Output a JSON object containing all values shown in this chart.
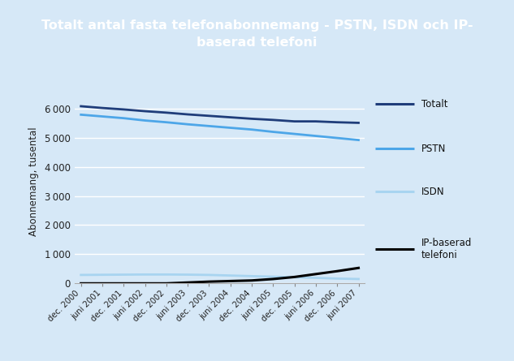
{
  "title_line1": "Totalt antal fasta telefonabonnemang - PSTN, ISDN och IP-",
  "title_line2": "baserad telefoni",
  "title_bg": "#1a4a8a",
  "title_color": "#ffffff",
  "bg_color": "#d6e8f7",
  "ylabel": "Abonnemang, tusental",
  "xlabels": [
    "dec. 2000",
    "juni 2001",
    "dec. 2001",
    "juni 2002",
    "dec. 2002",
    "juni 2003",
    "dec. 2003",
    "juni 2004",
    "dec. 2004",
    "juni 2005",
    "dec. 2005",
    "juni 2006",
    "dec. 2006",
    "juni 2007"
  ],
  "totalt": [
    6080,
    6020,
    5970,
    5910,
    5860,
    5800,
    5750,
    5700,
    5650,
    5610,
    5560,
    5560,
    5530,
    5510
  ],
  "pstn": [
    5790,
    5730,
    5670,
    5590,
    5530,
    5460,
    5400,
    5340,
    5280,
    5200,
    5130,
    5060,
    4990,
    4920
  ],
  "isdn": [
    290,
    295,
    300,
    305,
    305,
    300,
    290,
    270,
    250,
    230,
    210,
    190,
    165,
    150
  ],
  "ip": [
    0,
    0,
    0,
    0,
    0,
    30,
    60,
    80,
    100,
    150,
    220,
    320,
    420,
    530
  ],
  "colors": {
    "totalt": "#1f3d7a",
    "pstn": "#4da6e8",
    "isdn": "#a8d4f0",
    "ip": "#000000"
  },
  "legend_labels": [
    "Totalt",
    "PSTN",
    "ISDN",
    "IP-baserad\ntelefoni"
  ],
  "ylim": [
    0,
    7000
  ],
  "yticks": [
    0,
    1000,
    2000,
    3000,
    4000,
    5000,
    6000
  ]
}
